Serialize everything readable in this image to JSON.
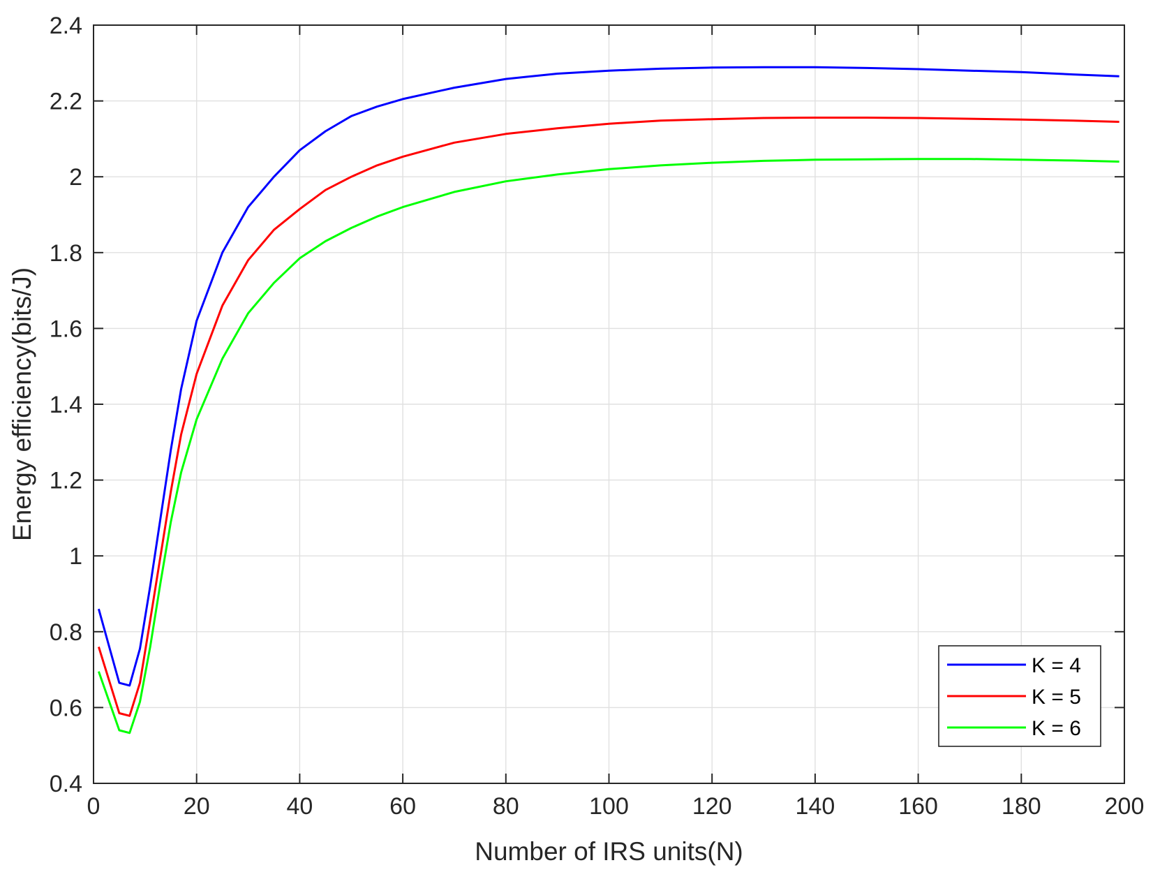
{
  "chart_data": {
    "type": "line",
    "title": "",
    "xlabel": "Number of IRS units(N)",
    "ylabel": "Energy efficiency(bits/J)",
    "xlim": [
      0,
      200
    ],
    "ylim": [
      0.4,
      2.4
    ],
    "xticks": [
      0,
      20,
      40,
      60,
      80,
      100,
      120,
      140,
      160,
      180,
      200
    ],
    "yticks": [
      0.4,
      0.6,
      0.8,
      1,
      1.2,
      1.4,
      1.6,
      1.8,
      2,
      2.2,
      2.4
    ],
    "xtick_labels": [
      "0",
      "20",
      "40",
      "60",
      "80",
      "100",
      "120",
      "140",
      "160",
      "180",
      "200"
    ],
    "ytick_labels": [
      "0.4",
      "0.6",
      "0.8",
      "1",
      "1.2",
      "1.4",
      "1.6",
      "1.8",
      "2",
      "2.2",
      "2.4"
    ],
    "grid": true,
    "legend_position": "bottom-right",
    "series": [
      {
        "name": "K = 4",
        "color": "#0000ff",
        "x": [
          1,
          5,
          7,
          9,
          11,
          13,
          15,
          17,
          20,
          25,
          30,
          35,
          40,
          45,
          50,
          55,
          60,
          70,
          80,
          90,
          100,
          110,
          120,
          130,
          140,
          150,
          160,
          170,
          180,
          190,
          199
        ],
        "y": [
          0.86,
          0.665,
          0.658,
          0.755,
          0.92,
          1.1,
          1.28,
          1.44,
          1.62,
          1.8,
          1.92,
          2.0,
          2.07,
          2.12,
          2.16,
          2.185,
          2.205,
          2.235,
          2.258,
          2.272,
          2.28,
          2.285,
          2.288,
          2.289,
          2.289,
          2.287,
          2.284,
          2.28,
          2.276,
          2.27,
          2.265
        ]
      },
      {
        "name": "K = 5",
        "color": "#ff0000",
        "x": [
          1,
          5,
          7,
          9,
          11,
          13,
          15,
          17,
          20,
          25,
          30,
          35,
          40,
          45,
          50,
          55,
          60,
          70,
          80,
          90,
          100,
          110,
          120,
          130,
          140,
          150,
          160,
          170,
          180,
          190,
          199
        ],
        "y": [
          0.76,
          0.585,
          0.578,
          0.665,
          0.83,
          1.0,
          1.17,
          1.32,
          1.48,
          1.66,
          1.78,
          1.86,
          1.915,
          1.965,
          2.0,
          2.03,
          2.053,
          2.09,
          2.113,
          2.128,
          2.14,
          2.148,
          2.152,
          2.155,
          2.156,
          2.156,
          2.155,
          2.153,
          2.151,
          2.148,
          2.145
        ]
      },
      {
        "name": "K = 6",
        "color": "#00ff00",
        "x": [
          1,
          5,
          7,
          9,
          11,
          13,
          15,
          17,
          20,
          25,
          30,
          35,
          40,
          45,
          50,
          55,
          60,
          70,
          80,
          90,
          100,
          110,
          120,
          130,
          140,
          150,
          160,
          170,
          180,
          190,
          199
        ],
        "y": [
          0.695,
          0.54,
          0.533,
          0.615,
          0.76,
          0.93,
          1.09,
          1.22,
          1.36,
          1.52,
          1.64,
          1.72,
          1.785,
          1.83,
          1.865,
          1.895,
          1.92,
          1.96,
          1.988,
          2.006,
          2.02,
          2.03,
          2.037,
          2.042,
          2.045,
          2.046,
          2.047,
          2.047,
          2.045,
          2.043,
          2.04
        ]
      }
    ]
  }
}
